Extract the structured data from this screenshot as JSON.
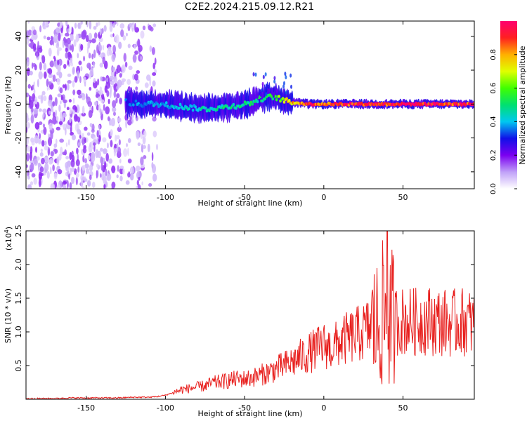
{
  "title": "C2E2.2024.215.09.12.R21",
  "chart_data": [
    {
      "type": "heatmap",
      "title": "C2E2.2024.215.09.12.R21",
      "xlabel": "Height of straight line (km)",
      "ylabel": "Frequency (Hz)",
      "xlim": [
        -188,
        95
      ],
      "ylim": [
        -50,
        49
      ],
      "x_ticks": [
        -150,
        -100,
        -50,
        0,
        50
      ],
      "y_ticks": [
        -40,
        -20,
        0,
        20,
        40
      ],
      "x_tick_labels": [
        "-150",
        "-100",
        "-50",
        "0",
        "50"
      ],
      "y_tick_labels": [
        "-40",
        "-20",
        "0",
        "20",
        "40"
      ],
      "colorbar": {
        "label": "Normalized spectral amplitude",
        "range": [
          0,
          1
        ],
        "ticks": [
          0.0,
          0.2,
          0.4,
          0.6,
          0.8
        ],
        "tick_labels": [
          "0.0",
          "0.2",
          "0.4",
          "0.6",
          "0.8"
        ],
        "colors": [
          "#ffffff",
          "#c0a0f8",
          "#7b00f0",
          "#1010e8",
          "#00c8f0",
          "#00e070",
          "#40ff00",
          "#e0ff00",
          "#ffb000",
          "#ff2020",
          "#ff0070"
        ]
      },
      "ridge": {
        "x": [
          -125,
          -115,
          -105,
          -95,
          -85,
          -75,
          -65,
          -55,
          -45,
          -40,
          -35,
          -30,
          -25,
          -20,
          -10,
          0,
          10,
          20,
          30,
          40,
          50,
          60,
          70,
          80,
          90
        ],
        "y": [
          1,
          0,
          0,
          -1,
          -2,
          -3,
          -2,
          -1,
          1,
          3,
          4,
          4,
          2,
          1,
          0,
          0,
          0,
          0,
          0,
          0,
          0,
          0,
          0,
          0,
          0
        ],
        "amplitude": [
          0.35,
          0.4,
          0.42,
          0.45,
          0.45,
          0.48,
          0.5,
          0.5,
          0.52,
          0.52,
          0.55,
          0.6,
          0.75,
          0.85,
          0.95,
          0.95,
          1.0,
          1.0,
          1.0,
          1.0,
          1.0,
          1.0,
          1.0,
          1.0,
          1.0
        ]
      },
      "noise_region_x": [
        -188,
        -105
      ],
      "grid": false
    },
    {
      "type": "line",
      "xlabel": "Height of straight line (km)",
      "ylabel": "SNR (10 * v/v)",
      "y_multiplier": "(x10",
      "y_multiplier_exp": "4",
      "y_multiplier_close": ")",
      "xlim": [
        -188,
        95
      ],
      "ylim": [
        0,
        2.5
      ],
      "x_ticks": [
        -150,
        -100,
        -50,
        0,
        50
      ],
      "y_ticks": [
        0.5,
        1.0,
        1.5,
        2.0,
        2.5
      ],
      "x_tick_labels": [
        "-150",
        "-100",
        "-50",
        "0",
        "50"
      ],
      "y_tick_labels": [
        "0.5",
        "1.0",
        "1.5",
        "2.0",
        "2.5"
      ],
      "series": [
        {
          "color": "#e8201e",
          "x": [
            -188,
            -180,
            -170,
            -160,
            -150,
            -140,
            -130,
            -120,
            -110,
            -105,
            -100,
            -95,
            -90,
            -85,
            -80,
            -75,
            -70,
            -65,
            -60,
            -55,
            -50,
            -45,
            -40,
            -35,
            -30,
            -25,
            -20,
            -15,
            -10,
            -5,
            0,
            5,
            10,
            15,
            20,
            25,
            30,
            35,
            38,
            40,
            42,
            45,
            50,
            55,
            60,
            65,
            70,
            75,
            80,
            85,
            90,
            95
          ],
          "y": [
            0.01,
            0.01,
            0.01,
            0.02,
            0.02,
            0.02,
            0.02,
            0.03,
            0.03,
            0.04,
            0.06,
            0.1,
            0.14,
            0.16,
            0.18,
            0.2,
            0.24,
            0.26,
            0.28,
            0.3,
            0.3,
            0.32,
            0.36,
            0.4,
            0.45,
            0.5,
            0.55,
            0.62,
            0.68,
            0.74,
            0.8,
            0.75,
            0.85,
            0.9,
            0.95,
            1.0,
            1.08,
            1.12,
            1.3,
            1.1,
            1.2,
            1.18,
            1.16,
            1.15,
            1.15,
            1.18,
            1.15,
            1.15,
            1.12,
            1.15,
            1.15,
            1.1
          ],
          "max_spike": [
            2.5,
            40
          ]
        }
      ],
      "grid": false
    }
  ]
}
